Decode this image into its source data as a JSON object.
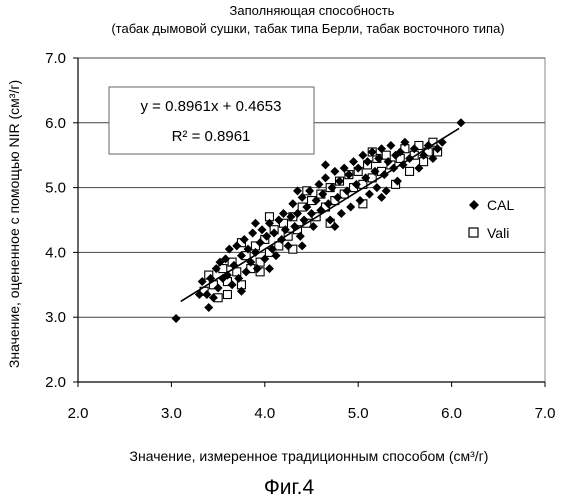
{
  "chart_data": {
    "type": "scatter",
    "title_lines": [
      "Заполняющая способность",
      "(табак дымовой сушки, табак типа Берли, табак восточного типа)"
    ],
    "xlabel": "Значение, измеренное традиционным способом (см³/г)",
    "ylabel": "Значение, оцененное с помощью NIR (см³/г)",
    "xlim": [
      2.0,
      7.0
    ],
    "ylim": [
      2.0,
      7.0
    ],
    "x_ticks": [
      "2.0",
      "3.0",
      "4.0",
      "5.0",
      "6.0",
      "7.0"
    ],
    "y_ticks": [
      "2.0",
      "3.0",
      "4.0",
      "5.0",
      "6.0",
      "7.0"
    ],
    "grid": "horizontal",
    "legend_position": "right",
    "regression": {
      "slope": 0.8961,
      "intercept": 0.4653,
      "equation_label": "y = 0.8961x + 0.4653",
      "r2_label": "R² = 0.8961"
    },
    "series": [
      {
        "name": "CAL",
        "marker": "diamond-filled",
        "color": "#000000",
        "points": [
          [
            3.05,
            2.98
          ],
          [
            3.3,
            3.35
          ],
          [
            3.33,
            3.55
          ],
          [
            3.38,
            3.35
          ],
          [
            3.4,
            3.15
          ],
          [
            3.42,
            3.6
          ],
          [
            3.45,
            3.3
          ],
          [
            3.48,
            3.75
          ],
          [
            3.5,
            3.45
          ],
          [
            3.52,
            3.85
          ],
          [
            3.55,
            3.6
          ],
          [
            3.58,
            3.9
          ],
          [
            3.6,
            3.65
          ],
          [
            3.62,
            4.05
          ],
          [
            3.65,
            3.5
          ],
          [
            3.67,
            3.8
          ],
          [
            3.7,
            4.1
          ],
          [
            3.72,
            3.6
          ],
          [
            3.75,
            3.95
          ],
          [
            3.78,
            4.2
          ],
          [
            3.8,
            3.7
          ],
          [
            3.82,
            4.05
          ],
          [
            3.85,
            3.85
          ],
          [
            3.87,
            4.3
          ],
          [
            3.9,
            4.0
          ],
          [
            3.92,
            3.75
          ],
          [
            3.95,
            4.15
          ],
          [
            3.97,
            4.35
          ],
          [
            4.0,
            3.9
          ],
          [
            4.02,
            4.25
          ],
          [
            4.05,
            4.45
          ],
          [
            4.08,
            4.05
          ],
          [
            4.1,
            4.3
          ],
          [
            4.12,
            3.95
          ],
          [
            4.15,
            4.5
          ],
          [
            4.18,
            4.2
          ],
          [
            4.2,
            4.6
          ],
          [
            4.22,
            4.35
          ],
          [
            4.25,
            4.1
          ],
          [
            4.28,
            4.55
          ],
          [
            4.3,
            4.75
          ],
          [
            4.32,
            4.4
          ],
          [
            4.35,
            4.6
          ],
          [
            4.38,
            4.25
          ],
          [
            4.4,
            4.85
          ],
          [
            4.42,
            4.5
          ],
          [
            4.45,
            4.7
          ],
          [
            4.48,
            4.95
          ],
          [
            4.5,
            4.6
          ],
          [
            4.52,
            4.4
          ],
          [
            4.55,
            4.8
          ],
          [
            4.58,
            5.05
          ],
          [
            4.6,
            4.65
          ],
          [
            4.62,
            4.9
          ],
          [
            4.65,
            5.15
          ],
          [
            4.68,
            4.75
          ],
          [
            4.7,
            4.5
          ],
          [
            4.72,
            5.0
          ],
          [
            4.75,
            5.25
          ],
          [
            4.78,
            4.85
          ],
          [
            4.8,
            5.1
          ],
          [
            4.82,
            4.6
          ],
          [
            4.85,
            5.3
          ],
          [
            4.88,
            4.95
          ],
          [
            4.9,
            5.2
          ],
          [
            4.92,
            4.7
          ],
          [
            4.95,
            5.4
          ],
          [
            4.98,
            5.05
          ],
          [
            5.0,
            5.3
          ],
          [
            5.02,
            4.8
          ],
          [
            5.05,
            5.5
          ],
          [
            5.08,
            5.15
          ],
          [
            5.1,
            5.4
          ],
          [
            5.12,
            4.9
          ],
          [
            5.15,
            5.55
          ],
          [
            5.18,
            5.25
          ],
          [
            5.2,
            5.0
          ],
          [
            5.22,
            5.45
          ],
          [
            5.25,
            5.6
          ],
          [
            5.28,
            5.2
          ],
          [
            5.3,
            4.95
          ],
          [
            5.32,
            5.4
          ],
          [
            5.35,
            5.65
          ],
          [
            5.38,
            5.3
          ],
          [
            5.4,
            5.5
          ],
          [
            5.42,
            5.1
          ],
          [
            5.45,
            5.55
          ],
          [
            5.48,
            5.35
          ],
          [
            5.5,
            5.7
          ],
          [
            5.55,
            5.45
          ],
          [
            5.6,
            5.6
          ],
          [
            5.65,
            5.3
          ],
          [
            5.7,
            5.5
          ],
          [
            5.75,
            5.65
          ],
          [
            5.8,
            5.45
          ],
          [
            5.85,
            5.6
          ],
          [
            5.9,
            5.7
          ],
          [
            6.1,
            6.0
          ],
          [
            3.75,
            3.4
          ],
          [
            4.05,
            3.75
          ],
          [
            4.4,
            4.1
          ],
          [
            4.75,
            4.4
          ],
          [
            5.25,
            4.85
          ],
          [
            4.35,
            4.95
          ],
          [
            4.65,
            5.35
          ],
          [
            3.9,
            4.45
          ]
        ]
      },
      {
        "name": "Vali",
        "marker": "square-open",
        "color": "#000000",
        "points": [
          [
            3.35,
            3.4
          ],
          [
            3.4,
            3.65
          ],
          [
            3.45,
            3.5
          ],
          [
            3.5,
            3.3
          ],
          [
            3.55,
            3.75
          ],
          [
            3.6,
            3.55
          ],
          [
            3.65,
            3.85
          ],
          [
            3.7,
            3.7
          ],
          [
            3.75,
            3.5
          ],
          [
            3.8,
            3.95
          ],
          [
            3.85,
            3.75
          ],
          [
            3.9,
            4.1
          ],
          [
            3.95,
            3.85
          ],
          [
            4.0,
            4.2
          ],
          [
            4.05,
            4.0
          ],
          [
            4.1,
            4.35
          ],
          [
            4.15,
            4.1
          ],
          [
            4.2,
            4.45
          ],
          [
            4.25,
            4.25
          ],
          [
            4.3,
            4.55
          ],
          [
            4.35,
            4.35
          ],
          [
            4.4,
            4.7
          ],
          [
            4.45,
            4.45
          ],
          [
            4.5,
            4.8
          ],
          [
            4.55,
            4.55
          ],
          [
            4.6,
            4.9
          ],
          [
            4.65,
            4.7
          ],
          [
            4.7,
            5.0
          ],
          [
            4.75,
            4.8
          ],
          [
            4.8,
            5.1
          ],
          [
            4.85,
            4.9
          ],
          [
            4.9,
            5.2
          ],
          [
            4.95,
            5.0
          ],
          [
            5.0,
            5.25
          ],
          [
            5.05,
            5.05
          ],
          [
            5.1,
            5.35
          ],
          [
            5.15,
            5.15
          ],
          [
            5.2,
            5.45
          ],
          [
            5.25,
            5.25
          ],
          [
            5.3,
            5.5
          ],
          [
            5.35,
            5.35
          ],
          [
            5.4,
            5.05
          ],
          [
            5.45,
            5.45
          ],
          [
            5.5,
            5.6
          ],
          [
            5.55,
            5.25
          ],
          [
            5.6,
            5.5
          ],
          [
            5.65,
            5.65
          ],
          [
            5.7,
            5.4
          ],
          [
            5.75,
            5.55
          ],
          [
            5.8,
            5.7
          ],
          [
            5.85,
            5.55
          ],
          [
            3.6,
            3.35
          ],
          [
            3.95,
            3.7
          ],
          [
            4.3,
            4.05
          ],
          [
            4.7,
            4.45
          ],
          [
            5.05,
            4.75
          ],
          [
            4.05,
            4.55
          ],
          [
            4.45,
            4.95
          ],
          [
            5.15,
            5.55
          ],
          [
            3.75,
            4.15
          ]
        ]
      }
    ]
  },
  "figure_caption": "Фиг.4"
}
